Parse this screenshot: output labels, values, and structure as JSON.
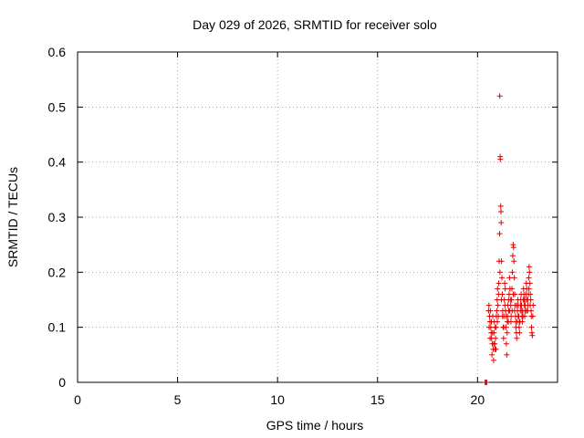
{
  "chart_data": {
    "type": "scatter",
    "title": "Day 029 of 2026, SRMTID for receiver solo",
    "xlabel": "GPS time / hours",
    "ylabel": "SRMTID / TECUs",
    "xlim": [
      0,
      24
    ],
    "ylim": [
      0,
      0.6
    ],
    "x_ticks": [
      0,
      5,
      10,
      15,
      20
    ],
    "x_tick_labels": [
      "0",
      "5",
      "10",
      "15",
      "20"
    ],
    "y_ticks": [
      0,
      0.1,
      0.2,
      0.3,
      0.4,
      0.5,
      0.6
    ],
    "y_tick_labels": [
      "0",
      "0.1",
      "0.2",
      "0.3",
      "0.4",
      "0.5",
      "0.6"
    ],
    "grid": true,
    "marker": "plus",
    "color": "#e00000",
    "series": [
      {
        "name": "SRMTID",
        "points": [
          [
            20.38,
            0.0
          ],
          [
            20.42,
            0.0
          ],
          [
            20.46,
            0.0
          ],
          [
            20.55,
            0.13
          ],
          [
            20.57,
            0.14
          ],
          [
            20.6,
            0.12
          ],
          [
            20.62,
            0.11
          ],
          [
            20.64,
            0.13
          ],
          [
            20.66,
            0.1
          ],
          [
            20.68,
            0.09
          ],
          [
            20.7,
            0.08
          ],
          [
            20.72,
            0.05
          ],
          [
            20.74,
            0.07
          ],
          [
            20.76,
            0.12
          ],
          [
            20.78,
            0.06
          ],
          [
            20.8,
            0.04
          ],
          [
            20.82,
            0.09
          ],
          [
            20.84,
            0.11
          ],
          [
            20.86,
            0.07
          ],
          [
            20.88,
            0.1
          ],
          [
            20.9,
            0.08
          ],
          [
            20.92,
            0.06
          ],
          [
            20.94,
            0.12
          ],
          [
            20.96,
            0.13
          ],
          [
            20.98,
            0.15
          ],
          [
            21.0,
            0.17
          ],
          [
            21.02,
            0.14
          ],
          [
            21.04,
            0.12
          ],
          [
            21.06,
            0.18
          ],
          [
            21.08,
            0.22
          ],
          [
            21.1,
            0.27
          ],
          [
            21.11,
            0.52
          ],
          [
            21.13,
            0.41
          ],
          [
            21.14,
            0.405
          ],
          [
            21.16,
            0.32
          ],
          [
            21.17,
            0.31
          ],
          [
            21.18,
            0.29
          ],
          [
            21.2,
            0.22
          ],
          [
            21.22,
            0.19
          ],
          [
            21.24,
            0.16
          ],
          [
            21.26,
            0.13
          ],
          [
            21.28,
            0.1
          ],
          [
            21.3,
            0.08
          ],
          [
            21.32,
            0.12
          ],
          [
            21.34,
            0.15
          ],
          [
            21.36,
            0.18
          ],
          [
            21.38,
            0.17
          ],
          [
            21.4,
            0.13
          ],
          [
            21.42,
            0.1
          ],
          [
            21.44,
            0.07
          ],
          [
            21.46,
            0.05
          ],
          [
            21.48,
            0.09
          ],
          [
            21.5,
            0.12
          ],
          [
            21.52,
            0.14
          ],
          [
            21.54,
            0.11
          ],
          [
            21.56,
            0.13
          ],
          [
            21.58,
            0.16
          ],
          [
            21.6,
            0.19
          ],
          [
            21.62,
            0.17
          ],
          [
            21.64,
            0.15
          ],
          [
            21.66,
            0.14
          ],
          [
            21.68,
            0.12
          ],
          [
            21.7,
            0.15
          ],
          [
            21.72,
            0.17
          ],
          [
            21.74,
            0.2
          ],
          [
            21.76,
            0.23
          ],
          [
            21.78,
            0.25
          ],
          [
            21.8,
            0.245
          ],
          [
            21.82,
            0.22
          ],
          [
            21.84,
            0.19
          ],
          [
            21.86,
            0.16
          ],
          [
            21.88,
            0.14
          ],
          [
            21.9,
            0.12
          ],
          [
            21.92,
            0.1
          ],
          [
            21.94,
            0.09
          ],
          [
            21.96,
            0.08
          ],
          [
            21.98,
            0.11
          ],
          [
            22.0,
            0.13
          ],
          [
            22.02,
            0.15
          ],
          [
            22.04,
            0.14
          ],
          [
            22.06,
            0.12
          ],
          [
            22.08,
            0.1
          ],
          [
            22.1,
            0.09
          ],
          [
            22.12,
            0.11
          ],
          [
            22.14,
            0.13
          ],
          [
            22.16,
            0.15
          ],
          [
            22.18,
            0.16
          ],
          [
            22.2,
            0.14
          ],
          [
            22.22,
            0.12
          ],
          [
            22.24,
            0.11
          ],
          [
            22.26,
            0.13
          ],
          [
            22.28,
            0.15
          ],
          [
            22.3,
            0.17
          ],
          [
            22.32,
            0.16
          ],
          [
            22.34,
            0.14
          ],
          [
            22.36,
            0.12
          ],
          [
            22.38,
            0.13
          ],
          [
            22.4,
            0.15
          ],
          [
            22.42,
            0.16
          ],
          [
            22.44,
            0.18
          ],
          [
            22.46,
            0.17
          ],
          [
            22.48,
            0.15
          ],
          [
            22.5,
            0.13
          ],
          [
            22.52,
            0.14
          ],
          [
            22.54,
            0.16
          ],
          [
            22.56,
            0.19
          ],
          [
            22.58,
            0.21
          ],
          [
            22.6,
            0.2
          ],
          [
            22.62,
            0.18
          ],
          [
            22.64,
            0.16
          ],
          [
            22.66,
            0.15
          ],
          [
            22.68,
            0.13
          ],
          [
            22.7,
            0.1
          ],
          [
            22.72,
            0.09
          ],
          [
            22.74,
            0.085
          ],
          [
            22.76,
            0.12
          ],
          [
            22.78,
            0.14
          ],
          [
            20.58,
            0.1
          ],
          [
            20.63,
            0.08
          ],
          [
            20.69,
            0.11
          ],
          [
            20.75,
            0.09
          ],
          [
            20.81,
            0.07
          ],
          [
            20.87,
            0.06
          ],
          [
            20.93,
            0.1
          ],
          [
            20.99,
            0.11
          ],
          [
            21.05,
            0.16
          ],
          [
            21.12,
            0.2
          ],
          [
            21.19,
            0.15
          ],
          [
            21.25,
            0.12
          ],
          [
            21.31,
            0.1
          ],
          [
            21.37,
            0.14
          ],
          [
            21.43,
            0.12
          ],
          [
            21.49,
            0.11
          ],
          [
            21.55,
            0.15
          ],
          [
            21.61,
            0.13
          ],
          [
            21.67,
            0.11
          ],
          [
            21.73,
            0.13
          ],
          [
            21.79,
            0.16
          ],
          [
            21.85,
            0.13
          ],
          [
            21.91,
            0.11
          ],
          [
            21.97,
            0.14
          ],
          [
            22.03,
            0.12
          ],
          [
            22.09,
            0.11
          ],
          [
            22.15,
            0.14
          ],
          [
            22.21,
            0.13
          ],
          [
            22.27,
            0.12
          ],
          [
            22.33,
            0.15
          ],
          [
            22.39,
            0.14
          ],
          [
            22.45,
            0.13
          ],
          [
            22.51,
            0.15
          ],
          [
            22.57,
            0.17
          ],
          [
            22.63,
            0.14
          ],
          [
            22.69,
            0.12
          ]
        ]
      }
    ]
  }
}
